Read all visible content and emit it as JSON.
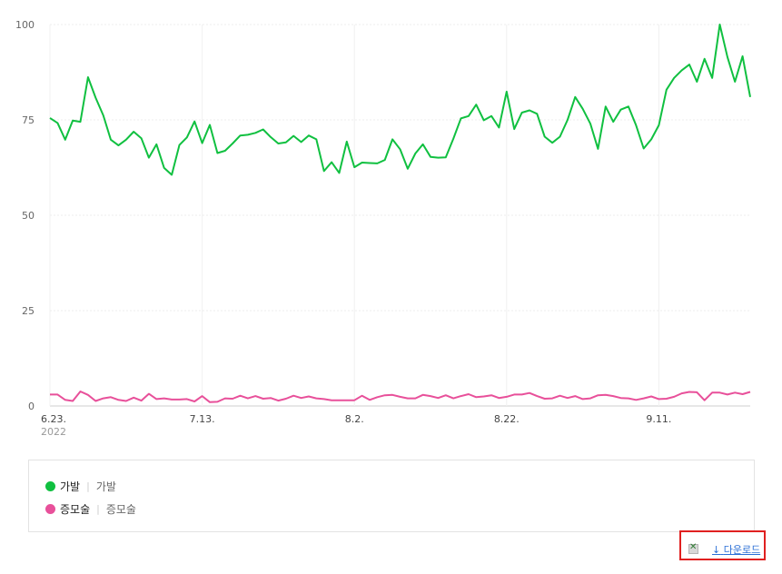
{
  "chart_data": {
    "type": "line",
    "x_start": "6.23.",
    "x_tick_labels": [
      "6.23.",
      "7.13.",
      "8.2.",
      "8.22.",
      "9.11."
    ],
    "x_subtitle": "2022",
    "y_ticks": [
      0,
      25,
      50,
      75,
      100
    ],
    "ylim": [
      0,
      100
    ],
    "grid": true,
    "series": [
      {
        "name": "가발",
        "color": "#10c040",
        "values": [
          75.5,
          74.2,
          69.8,
          74.8,
          74.5,
          86.2,
          80.8,
          76.2,
          69.8,
          68.3,
          69.8,
          71.9,
          70.2,
          65.1,
          68.6,
          62.4,
          60.6,
          68.4,
          70.4,
          74.6,
          68.9,
          73.7,
          66.3,
          66.9,
          68.8,
          70.9,
          71.1,
          71.6,
          72.5,
          70.5,
          68.8,
          69.1,
          70.8,
          69.2,
          70.9,
          69.9,
          61.6,
          63.9,
          61.1,
          69.3,
          62.6,
          63.8,
          63.7,
          63.6,
          64.5,
          69.9,
          67.3,
          62.2,
          66.2,
          68.6,
          65.3,
          65.1,
          65.2,
          70.1,
          75.4,
          76.0,
          79.0,
          74.9,
          76.0,
          73.0,
          82.4,
          72.6,
          76.9,
          77.5,
          76.6,
          70.6,
          69.0,
          70.6,
          75.0,
          81.0,
          77.9,
          74.0,
          67.4,
          78.5,
          74.5,
          77.7,
          78.5,
          73.6,
          67.5,
          69.9,
          73.6,
          82.9,
          86.0,
          88.0,
          89.5,
          85.0,
          91.0,
          86.0,
          100.0,
          91.5,
          85.0,
          91.7,
          81.0
        ]
      },
      {
        "name": "증모술",
        "color": "#e8509a",
        "values": [
          3.0,
          3.0,
          1.6,
          1.3,
          3.8,
          2.9,
          1.3,
          2.0,
          2.3,
          1.6,
          1.3,
          2.2,
          1.4,
          3.2,
          1.8,
          2.0,
          1.7,
          1.7,
          1.8,
          1.2,
          2.6,
          1.0,
          1.1,
          2.0,
          1.9,
          2.7,
          2.0,
          2.6,
          1.9,
          2.1,
          1.4,
          1.9,
          2.7,
          2.1,
          2.5,
          2.0,
          1.8,
          1.5,
          1.5,
          1.5,
          1.5,
          2.7,
          1.6,
          2.3,
          2.8,
          2.9,
          2.4,
          2.0,
          2.0,
          2.9,
          2.6,
          2.1,
          2.8,
          2.0,
          2.6,
          3.1,
          2.3,
          2.5,
          2.8,
          2.1,
          2.4,
          3.0,
          3.0,
          3.4,
          2.6,
          1.9,
          2.0,
          2.7,
          2.1,
          2.6,
          1.8,
          2.0,
          2.8,
          2.9,
          2.6,
          2.1,
          2.0,
          1.6,
          2.0,
          2.5,
          1.8,
          1.9,
          2.4,
          3.3,
          3.7,
          3.6,
          1.5,
          3.5,
          3.5,
          3.0,
          3.5,
          3.1,
          3.7
        ]
      }
    ]
  },
  "legend": {
    "items": [
      {
        "label": "가발",
        "sub_label": "가발",
        "color": "#10c040"
      },
      {
        "label": "증모술",
        "sub_label": "증모술",
        "color": "#e8509a"
      }
    ],
    "separator": "|"
  },
  "download": {
    "label": "다운로드",
    "arrow": "↓",
    "icon": "excel-icon"
  }
}
